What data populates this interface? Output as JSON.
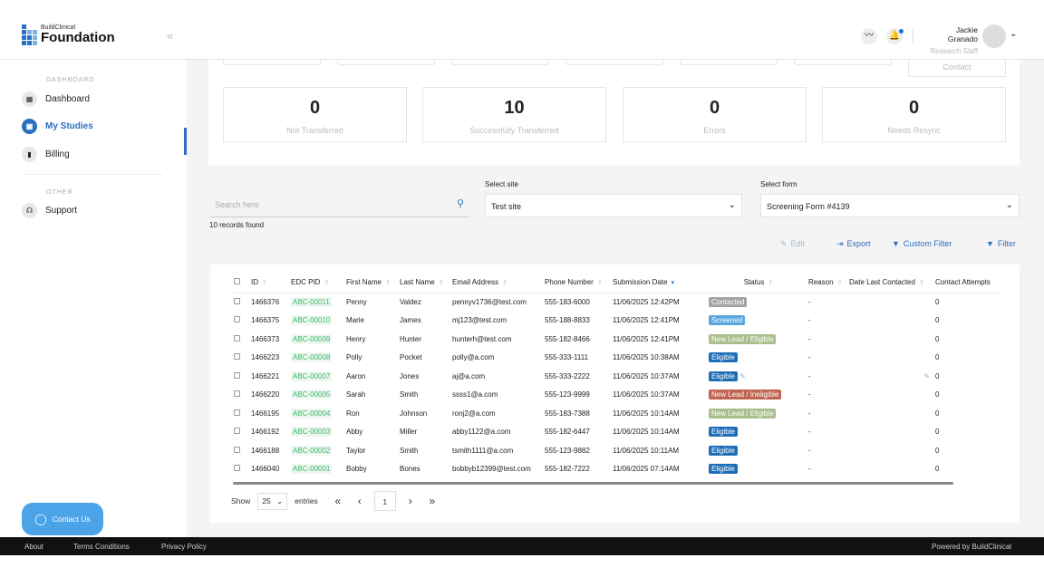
{
  "header": {
    "brand_small": "BuildClinical",
    "brand": "Foundation",
    "user_name": "Jackie Granado",
    "user_role": "Research Staff"
  },
  "sidebar": {
    "section1": "DASHBOARD",
    "items": [
      {
        "label": "Dashboard"
      },
      {
        "label": "My Studies"
      },
      {
        "label": "Billing"
      }
    ],
    "section2": "OTHER",
    "support": "Support",
    "contact_us": "Contact Us"
  },
  "top_tab": "Contact",
  "stats": [
    {
      "value": "0",
      "label": "Not Transferred"
    },
    {
      "value": "10",
      "label": "Successfully Transferred"
    },
    {
      "value": "0",
      "label": "Errors"
    },
    {
      "value": "0",
      "label": "Needs Resync"
    }
  ],
  "search": {
    "placeholder": "Search here",
    "records": "10 records found"
  },
  "site": {
    "label": "Select site",
    "value": "Test site"
  },
  "form": {
    "label": "Select form",
    "value": "Screening Form #4139"
  },
  "actions": {
    "edit": "Edit",
    "export": "Export",
    "custom_filter": "Custom Filter",
    "filter": "Filter"
  },
  "status_colors": {
    "Contacted": "#a3a3a3",
    "Screened": "#5ba7dd",
    "New Lead / Eligible": "#a9bf8c",
    "Eligible": "#1f6db6",
    "New Lead / Ineligible": "#c0634f"
  },
  "table": {
    "columns": [
      "ID",
      "EDC PID",
      "First Name",
      "Last Name",
      "Email Address",
      "Phone Number",
      "Submission Date",
      "Status",
      "Reason",
      "Date Last Contacted",
      "Contact Attempts"
    ],
    "rows": [
      [
        "1466376",
        "ABC-00011",
        "Penny",
        "Valdez",
        "pennyv1736@test.com",
        "555-183-6000",
        "11/06/2025 12:42PM",
        "Contacted",
        "-",
        "",
        "0"
      ],
      [
        "1466375",
        "ABC-00010",
        "Marie",
        "James",
        "mj123@test.com",
        "555-188-8833",
        "11/06/2025 12:41PM",
        "Screened",
        "-",
        "",
        "0"
      ],
      [
        "1466373",
        "ABC-00009",
        "Henry",
        "Hunter",
        "hunterh@test.com",
        "555-182-8466",
        "11/06/2025 12:41PM",
        "New Lead / Eligible",
        "-",
        "",
        "0"
      ],
      [
        "1466223",
        "ABC-00008",
        "Polly",
        "Pocket",
        "polly@a.com",
        "555-333-1111",
        "11/06/2025 10:38AM",
        "Eligible",
        "-",
        "",
        "0"
      ],
      [
        "1466221",
        "ABC-00007",
        "Aaron",
        "Jones",
        "aj@a.com",
        "555-333-2222",
        "11/06/2025 10:37AM",
        "Eligible",
        "-",
        "",
        "0"
      ],
      [
        "1466220",
        "ABC-00005",
        "Sarah",
        "Smith",
        "ssss1@a.com",
        "555-123-9999",
        "11/06/2025 10:37AM",
        "New Lead / Ineligible",
        "-",
        "",
        "0"
      ],
      [
        "1466195",
        "ABC-00004",
        "Ron",
        "Johnson",
        "ronj2@a.com",
        "555-183-7388",
        "11/06/2025 10:14AM",
        "New Lead / Eligible",
        "-",
        "",
        "0"
      ],
      [
        "1466192",
        "ABC-00003",
        "Abby",
        "Miller",
        "abby1122@a.com",
        "555-182-6447",
        "11/06/2025 10:14AM",
        "Eligible",
        "-",
        "",
        "0"
      ],
      [
        "1466188",
        "ABC-00002",
        "Taylor",
        "Smith",
        "tsmith1111@a.com",
        "555-123-9882",
        "11/06/2025 10:11AM",
        "Eligible",
        "-",
        "",
        "0"
      ],
      [
        "1466040",
        "ABC-00001",
        "Bobby",
        "Bones",
        "bobbyb12399@test.com",
        "555-182-7222",
        "11/06/2025 07:14AM",
        "Eligible",
        "-",
        "",
        "0"
      ]
    ]
  },
  "pager": {
    "show": "Show",
    "entries_value": "25",
    "entries": "entries",
    "page": "1"
  },
  "footer": {
    "about": "About",
    "terms": "Terms Conditions",
    "privacy": "Privacy Policy",
    "powered": "Powered by BuildClinical"
  }
}
